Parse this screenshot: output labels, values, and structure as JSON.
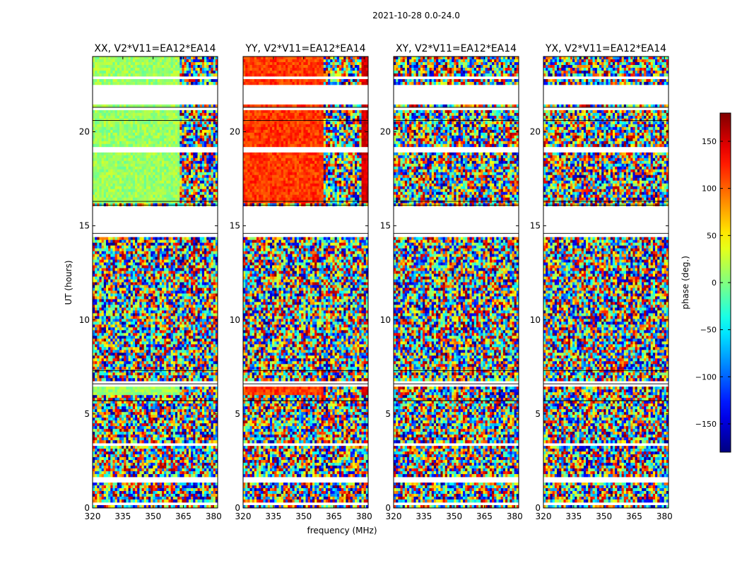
{
  "chart_data": {
    "type": "heatmap",
    "title": "2021-10-28 0.0-24.0",
    "xlabel": "frequency (MHz)",
    "ylabel": "UT (hours)",
    "xlim": [
      320,
      382
    ],
    "ylim": [
      0,
      24
    ],
    "x_ticks": [
      320,
      335,
      350,
      365,
      380
    ],
    "y_ticks": [
      0,
      5,
      10,
      15,
      20
    ],
    "panels": [
      {
        "title": "XX, V2*V11=EA12*EA14",
        "polarization": "XX",
        "coherent_phase_deg": 10,
        "coherent_hours": [
          [
            16.2,
            21.5
          ],
          [
            22.5,
            24
          ],
          [
            6.0,
            6.4
          ]
        ],
        "freq_split_mhz": 363
      },
      {
        "title": "YY, V2*V11=EA12*EA14",
        "polarization": "YY",
        "coherent_phase_deg": 115,
        "coherent_hours": [
          [
            16.2,
            21.5
          ],
          [
            22.5,
            24
          ],
          [
            6.0,
            6.4
          ]
        ],
        "freq_split_mhz": 360
      },
      {
        "title": "XY, V2*V11=EA12*EA14",
        "polarization": "XY",
        "coherent_phase_deg": null,
        "coherent_hours": [],
        "freq_split_mhz": null
      },
      {
        "title": "YX, V2*V11=EA12*EA14",
        "polarization": "YX",
        "coherent_phase_deg": null,
        "coherent_hours": [],
        "freq_split_mhz": null
      }
    ],
    "flagged_hours": [
      [
        0.1,
        0.3
      ],
      [
        1.3,
        1.6
      ],
      [
        3.3,
        3.45
      ],
      [
        3.55,
        3.65
      ],
      [
        5.95,
        6.0
      ],
      [
        6.5,
        6.7
      ],
      [
        14.45,
        14.65
      ],
      [
        14.7,
        16.0
      ],
      [
        18.9,
        19.15
      ],
      [
        20.5,
        20.6
      ],
      [
        21.1,
        21.25
      ],
      [
        21.5,
        22.5
      ],
      [
        22.8,
        22.9
      ],
      [
        23.2,
        23.3
      ]
    ],
    "colorbar": {
      "label": "phase (deg.)",
      "range": [
        -180,
        180
      ],
      "ticks": [
        150,
        100,
        50,
        0,
        -50,
        -100,
        -150
      ],
      "colormap": "jet",
      "colors": [
        "#00007f",
        "#0000ff",
        "#007fff",
        "#00ffff",
        "#7fff7f",
        "#ffff00",
        "#ff7f00",
        "#ff0000",
        "#7f0000"
      ]
    }
  }
}
